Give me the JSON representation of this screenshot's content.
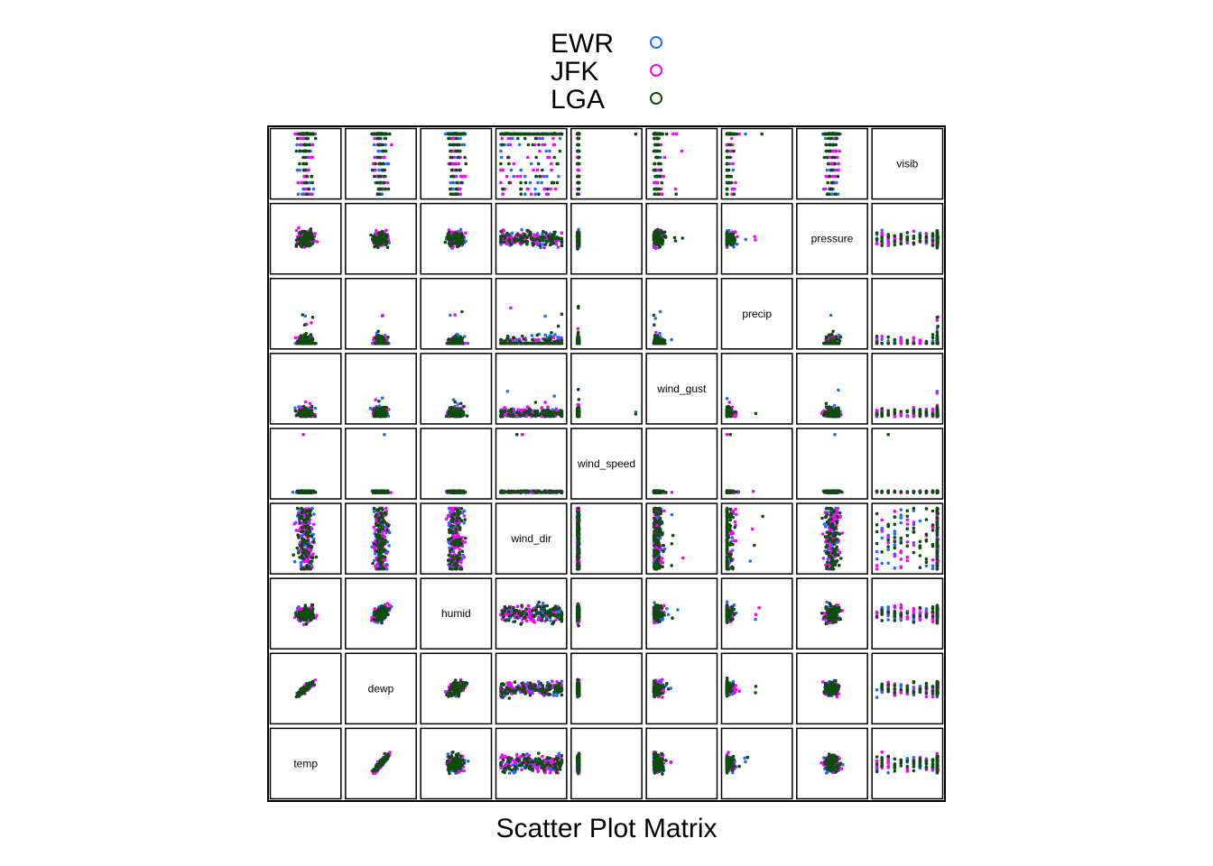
{
  "chart_data": {
    "type": "scatter",
    "subtype": "scatter-matrix",
    "title": "",
    "xlabel": "Scatter Plot Matrix",
    "ylabel": "",
    "grid": false,
    "legend_position": "top-center",
    "variables": [
      "temp",
      "dewp",
      "humid",
      "wind_dir",
      "wind_speed",
      "wind_gust",
      "precip",
      "pressure",
      "visib"
    ],
    "series": [
      {
        "name": "EWR",
        "color": "#1f6fff",
        "marker": "open-circle"
      },
      {
        "name": "JFK",
        "color": "#ff00ff",
        "marker": "open-circle"
      },
      {
        "name": "LGA",
        "color": "#0b4d0b",
        "marker": "open-circle"
      }
    ]
  }
}
